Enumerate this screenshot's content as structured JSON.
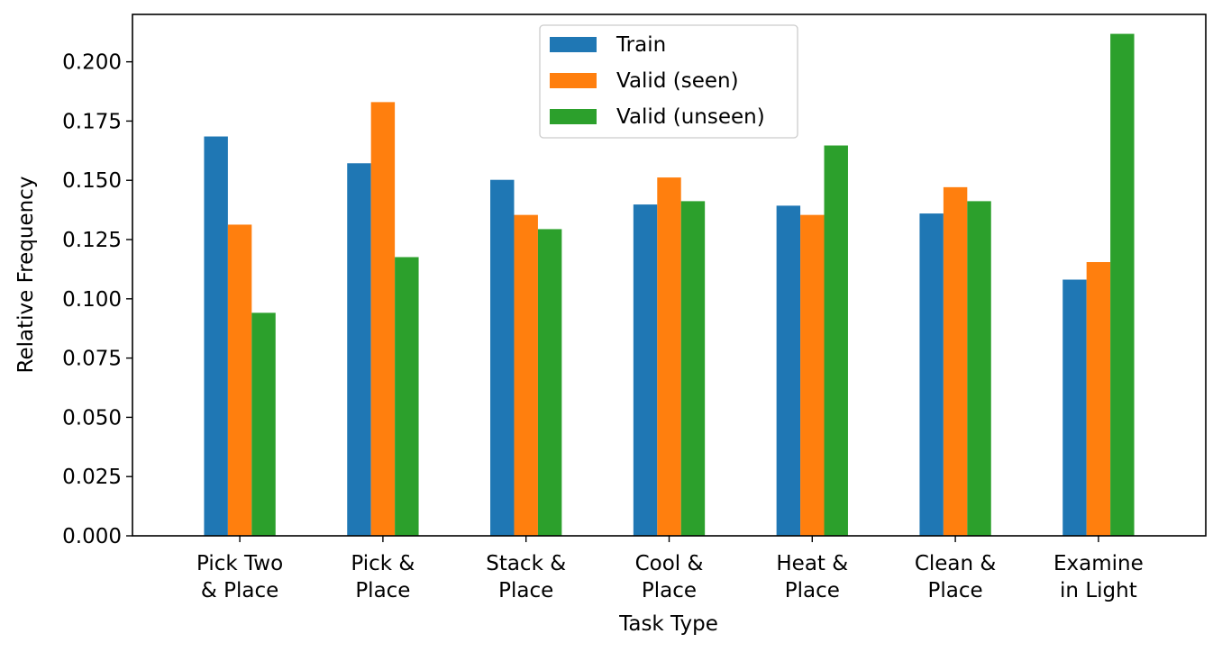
{
  "chart_data": {
    "type": "bar",
    "xlabel": "Task Type",
    "ylabel": "Relative Frequency",
    "categories": [
      [
        "Pick Two",
        "& Place"
      ],
      [
        "Pick &",
        "Place"
      ],
      [
        "Stack &",
        "Place"
      ],
      [
        "Cool &",
        "Place"
      ],
      [
        "Heat &",
        "Place"
      ],
      [
        "Clean &",
        "Place"
      ],
      [
        "Examine",
        "in Light"
      ]
    ],
    "series": [
      {
        "name": "Train",
        "color": "#1f77b4",
        "values": [
          0.1685,
          0.1572,
          0.1502,
          0.1398,
          0.1393,
          0.136,
          0.1081
        ]
      },
      {
        "name": "Valid (seen)",
        "color": "#ff7f0e",
        "values": [
          0.1313,
          0.183,
          0.1354,
          0.1512,
          0.1354,
          0.1471,
          0.1155
        ]
      },
      {
        "name": "Valid (unseen)",
        "color": "#2ca02c",
        "values": [
          0.0941,
          0.1176,
          0.1294,
          0.1412,
          0.1647,
          0.1412,
          0.2118
        ]
      }
    ],
    "ylim": [
      0,
      0.22
    ],
    "yticks": [
      "0.000",
      "0.025",
      "0.050",
      "0.075",
      "0.100",
      "0.125",
      "0.150",
      "0.175",
      "0.200"
    ],
    "grid": false,
    "legend_position": "top-center"
  }
}
